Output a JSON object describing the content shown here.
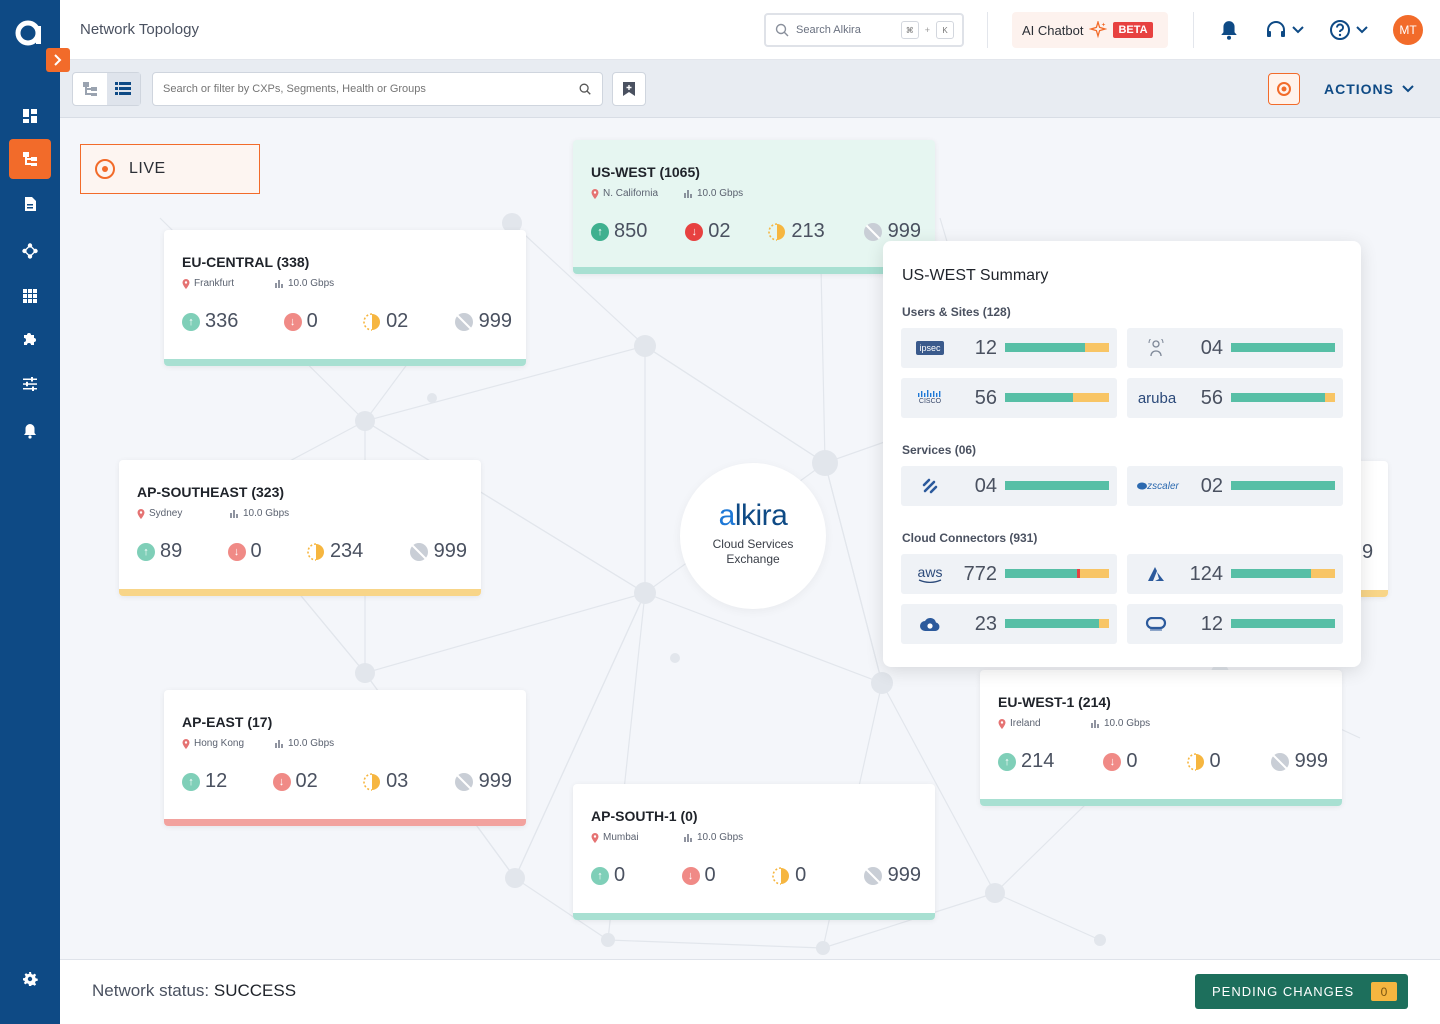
{
  "header": {
    "title": "Network Topology",
    "search_placeholder": "Search Alkira",
    "kbd1": "⌘",
    "kbd_plus": "+",
    "kbd2": "K",
    "chatbot_label": "AI Chatbot",
    "beta_label": "BETA",
    "avatar_initials": "MT"
  },
  "toolbar": {
    "filter_placeholder": "Search or filter by CXPs, Segments, Health or Groups",
    "actions_label": "ACTIONS"
  },
  "live_label": "LIVE",
  "center": {
    "brand_a": "a",
    "brand_rest": "lkira",
    "line1": "Cloud Services",
    "line2": "Exchange"
  },
  "cards": [
    {
      "title": "US-WEST (1065)",
      "location": "N. California",
      "bandwidth": "10.0 Gbps",
      "up": "850",
      "down": "02",
      "partial": "213",
      "disabled": "999"
    },
    {
      "title": "EU-CENTRAL (338)",
      "location": "Frankfurt",
      "bandwidth": "10.0 Gbps",
      "up": "336",
      "down": "0",
      "partial": "02",
      "disabled": "999"
    },
    {
      "title": "AP-SOUTHEAST (323)",
      "location": "Sydney",
      "bandwidth": "10.0 Gbps",
      "up": "89",
      "down": "0",
      "partial": "234",
      "disabled": "999"
    },
    {
      "title": "AP-EAST (17)",
      "location": "Hong Kong",
      "bandwidth": "10.0 Gbps",
      "up": "12",
      "down": "02",
      "partial": "03",
      "disabled": "999"
    },
    {
      "title": "AP-SOUTH-1 (0)",
      "location": "Mumbai",
      "bandwidth": "10.0 Gbps",
      "up": "0",
      "down": "0",
      "partial": "0",
      "disabled": "999"
    },
    {
      "title": "EU-WEST-1 (214)",
      "location": "Ireland",
      "bandwidth": "10.0 Gbps",
      "up": "214",
      "down": "0",
      "partial": "0",
      "disabled": "999"
    }
  ],
  "partial_hidden_value": "9",
  "summary": {
    "title": "US-WEST Summary",
    "sections": [
      {
        "label": "Users & Sites (128)"
      },
      {
        "label": "Services (06)"
      },
      {
        "label": "Cloud Connectors (931)"
      }
    ],
    "tiles": [
      {
        "name": "ipsec",
        "value": "12",
        "healthy_fraction": 0.77
      },
      {
        "name": "remote-user",
        "value": "04",
        "healthy_fraction": 1.0
      },
      {
        "name": "cisco",
        "value": "56",
        "healthy_fraction": 0.65
      },
      {
        "name": "aruba",
        "value": "56",
        "healthy_fraction": 0.9
      },
      {
        "name": "palo-alto",
        "value": "04",
        "healthy_fraction": 1.0
      },
      {
        "name": "zscaler",
        "value": "02",
        "healthy_fraction": 1.0
      },
      {
        "name": "aws",
        "value": "772",
        "healthy_fraction": 0.7
      },
      {
        "name": "azure",
        "value": "124",
        "healthy_fraction": 0.77
      },
      {
        "name": "gcp",
        "value": "23",
        "healthy_fraction": 0.9
      },
      {
        "name": "oracle",
        "value": "12",
        "healthy_fraction": 1.0
      }
    ],
    "logo_text": {
      "ipsec": "ipsec",
      "cisco": "CISCO",
      "aruba": "aruba",
      "zscaler": "zscaler",
      "aws": "aws"
    }
  },
  "footer": {
    "status_label": "Network status:",
    "status_value": "SUCCESS",
    "pending_label": "PENDING CHANGES",
    "pending_count": "0"
  },
  "colors": {
    "brand_blue": "#0e4a85",
    "accent_orange": "#f26b2a",
    "healthy": "#57bfa6",
    "warning": "#f8c565",
    "error": "#e74140"
  }
}
